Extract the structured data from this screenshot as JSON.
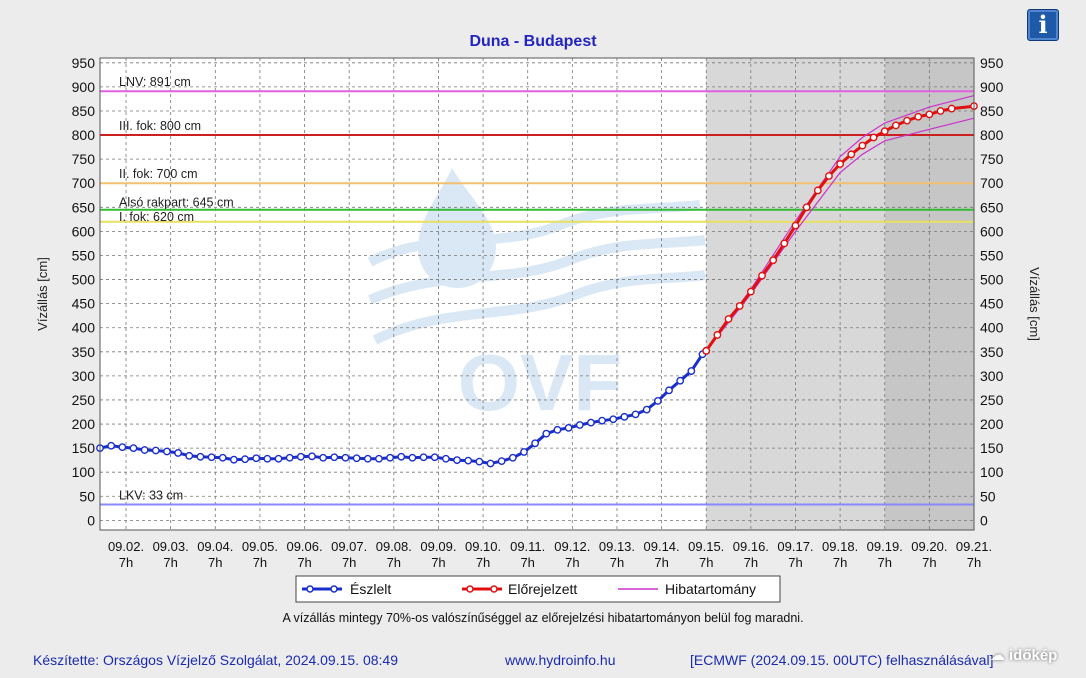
{
  "title": "Duna - Budapest",
  "info_icon": "i",
  "y_label_left": "Vízállás [cm]",
  "y_label_right": "Vízállás [cm]",
  "watermark_text": "OVF",
  "legend": [
    {
      "label": "Észlelt",
      "color": "#1a2ecc",
      "icon": "line-circle-marker"
    },
    {
      "label": "Előrejelzett",
      "color": "#e01010",
      "icon": "line-circle-marker"
    },
    {
      "label": "Hibatartomány",
      "color": "#cc33cc",
      "icon": "line"
    }
  ],
  "note": "A vízállás mintegy 70%-os valószínűséggel az előrejelzési hibatartományon belül fog maradni.",
  "footer": {
    "left": "Készítette: Országos Vízjelző Szolgálat, 2024.09.15. 08:49",
    "center": "www.hydroinfo.hu",
    "right": "[ECMWF (2024.09.15. 00UTC) felhasználásával]"
  },
  "corner_watermark": "időkép",
  "chart_data": {
    "type": "line",
    "ylim": [
      -20,
      960
    ],
    "yticks": [
      0,
      50,
      100,
      150,
      200,
      250,
      300,
      350,
      400,
      450,
      500,
      550,
      600,
      650,
      700,
      750,
      800,
      850,
      900,
      950
    ],
    "x_range_days": [
      "09.01. 17h",
      "09.21. 7h"
    ],
    "x_ticks": [
      {
        "date": "09.02.",
        "hour": "7h"
      },
      {
        "date": "09.03.",
        "hour": "7h"
      },
      {
        "date": "09.04.",
        "hour": "7h"
      },
      {
        "date": "09.05.",
        "hour": "7h"
      },
      {
        "date": "09.06.",
        "hour": "7h"
      },
      {
        "date": "09.07.",
        "hour": "7h"
      },
      {
        "date": "09.08.",
        "hour": "7h"
      },
      {
        "date": "09.09.",
        "hour": "7h"
      },
      {
        "date": "09.10.",
        "hour": "7h"
      },
      {
        "date": "09.11.",
        "hour": "7h"
      },
      {
        "date": "09.12.",
        "hour": "7h"
      },
      {
        "date": "09.13.",
        "hour": "7h"
      },
      {
        "date": "09.14.",
        "hour": "7h"
      },
      {
        "date": "09.15.",
        "hour": "7h"
      },
      {
        "date": "09.16.",
        "hour": "7h"
      },
      {
        "date": "09.17.",
        "hour": "7h"
      },
      {
        "date": "09.18.",
        "hour": "7h"
      },
      {
        "date": "09.19.",
        "hour": "7h"
      },
      {
        "date": "09.20.",
        "hour": "7h"
      },
      {
        "date": "09.21.",
        "hour": "7h"
      }
    ],
    "shaded_ranges": [
      {
        "from": "09.15. 7h",
        "to": "09.19. 7h",
        "color": "#d8d8d8"
      },
      {
        "from": "09.19. 7h",
        "to": "09.21. 7h",
        "color": "#c6c6c6"
      }
    ],
    "thresholds": [
      {
        "label": "LNV: 891 cm",
        "value": 891,
        "color": "#e060e0"
      },
      {
        "label": "III. fok: 800 cm",
        "value": 800,
        "color": "#cc2020"
      },
      {
        "label": "II. fok: 700 cm",
        "value": 700,
        "color": "#f2c070"
      },
      {
        "label": "Alsó rakpart: 645 cm",
        "value": 645,
        "color": "#33bb33"
      },
      {
        "label": "I. fok: 620 cm",
        "value": 620,
        "color": "#e8e060"
      },
      {
        "label": "LKV: 33 cm",
        "value": 33,
        "color": "#8888ff"
      }
    ],
    "series": [
      {
        "name": "Észlelt",
        "color": "#1a2ecc",
        "points": [
          [
            "09.01. 17h",
            150
          ],
          [
            "09.01. 23h",
            155
          ],
          [
            "09.02. 5h",
            152
          ],
          [
            "09.02. 11h",
            150
          ],
          [
            "09.02. 17h",
            146
          ],
          [
            "09.02. 23h",
            145
          ],
          [
            "09.03. 5h",
            143
          ],
          [
            "09.03. 11h",
            140
          ],
          [
            "09.03. 17h",
            134
          ],
          [
            "09.03. 23h",
            132
          ],
          [
            "09.04. 5h",
            131
          ],
          [
            "09.04. 11h",
            130
          ],
          [
            "09.04. 17h",
            126
          ],
          [
            "09.04. 23h",
            127
          ],
          [
            "09.05. 5h",
            129
          ],
          [
            "09.05. 11h",
            128
          ],
          [
            "09.05. 17h",
            128
          ],
          [
            "09.05. 23h",
            130
          ],
          [
            "09.06. 5h",
            132
          ],
          [
            "09.06. 11h",
            133
          ],
          [
            "09.06. 17h",
            130
          ],
          [
            "09.06. 23h",
            131
          ],
          [
            "09.07. 5h",
            130
          ],
          [
            "09.07. 11h",
            129
          ],
          [
            "09.07. 17h",
            128
          ],
          [
            "09.07. 23h",
            128
          ],
          [
            "09.08. 5h",
            130
          ],
          [
            "09.08. 11h",
            132
          ],
          [
            "09.08. 17h",
            130
          ],
          [
            "09.08. 23h",
            131
          ],
          [
            "09.09. 5h",
            131
          ],
          [
            "09.09. 11h",
            128
          ],
          [
            "09.09. 17h",
            125
          ],
          [
            "09.09. 23h",
            124
          ],
          [
            "09.10. 5h",
            122
          ],
          [
            "09.10. 11h",
            118
          ],
          [
            "09.10. 17h",
            123
          ],
          [
            "09.10. 23h",
            130
          ],
          [
            "09.11. 5h",
            142
          ],
          [
            "09.11. 11h",
            160
          ],
          [
            "09.11. 17h",
            180
          ],
          [
            "09.11. 23h",
            188
          ],
          [
            "09.12. 5h",
            192
          ],
          [
            "09.12. 11h",
            198
          ],
          [
            "09.12. 17h",
            203
          ],
          [
            "09.12. 23h",
            207
          ],
          [
            "09.13. 5h",
            210
          ],
          [
            "09.13. 11h",
            215
          ],
          [
            "09.13. 17h",
            220
          ],
          [
            "09.13. 23h",
            230
          ],
          [
            "09.14. 5h",
            248
          ],
          [
            "09.14. 11h",
            270
          ],
          [
            "09.14. 17h",
            290
          ],
          [
            "09.14. 23h",
            310
          ],
          [
            "09.15. 5h",
            345
          ],
          [
            "09.15. 7h",
            352
          ]
        ]
      },
      {
        "name": "Előrejelzett",
        "color": "#e01010",
        "points": [
          [
            "09.15. 7h",
            352
          ],
          [
            "09.15. 13h",
            385
          ],
          [
            "09.15. 19h",
            418
          ],
          [
            "09.16. 1h",
            445
          ],
          [
            "09.16. 7h",
            475
          ],
          [
            "09.16. 13h",
            508
          ],
          [
            "09.16. 19h",
            540
          ],
          [
            "09.17. 1h",
            575
          ],
          [
            "09.17. 7h",
            612
          ],
          [
            "09.17. 13h",
            650
          ],
          [
            "09.17. 19h",
            685
          ],
          [
            "09.18. 1h",
            715
          ],
          [
            "09.18. 7h",
            740
          ],
          [
            "09.18. 13h",
            760
          ],
          [
            "09.18. 19h",
            778
          ],
          [
            "09.19. 1h",
            795
          ],
          [
            "09.19. 7h",
            808
          ],
          [
            "09.19. 13h",
            820
          ],
          [
            "09.19. 19h",
            830
          ],
          [
            "09.20. 1h",
            838
          ],
          [
            "09.20. 7h",
            843
          ],
          [
            "09.20. 13h",
            850
          ],
          [
            "09.20. 19h",
            855
          ],
          [
            "09.21. 7h",
            860
          ]
        ]
      },
      {
        "name": "Hibatartomány",
        "color": "#cc33cc",
        "upper": [
          [
            "09.15. 7h",
            352
          ],
          [
            "09.16. 7h",
            480
          ],
          [
            "09.17. 7h",
            622
          ],
          [
            "09.18. 7h",
            755
          ],
          [
            "09.18. 19h",
            795
          ],
          [
            "09.19. 7h",
            825
          ],
          [
            "09.20. 7h",
            858
          ],
          [
            "09.21. 7h",
            882
          ]
        ],
        "lower": [
          [
            "09.15. 7h",
            352
          ],
          [
            "09.16. 7h",
            470
          ],
          [
            "09.17. 7h",
            600
          ],
          [
            "09.18. 7h",
            722
          ],
          [
            "09.18. 19h",
            760
          ],
          [
            "09.19. 7h",
            788
          ],
          [
            "09.20. 7h",
            812
          ],
          [
            "09.21. 7h",
            835
          ]
        ]
      }
    ]
  }
}
